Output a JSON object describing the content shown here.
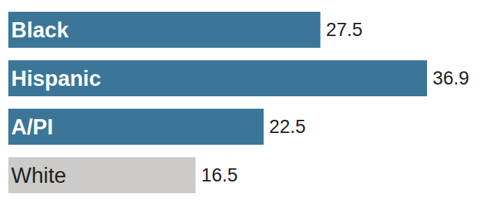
{
  "chart_data": {
    "type": "bar",
    "orientation": "horizontal",
    "categories": [
      "Black",
      "Hispanic",
      "A/PI",
      "White"
    ],
    "values": [
      27.5,
      36.9,
      22.5,
      16.5
    ],
    "colors": [
      "#3b7698",
      "#3b7698",
      "#3b7698",
      "#cccbc9"
    ],
    "data_labels": true,
    "tick_labels": false
  }
}
